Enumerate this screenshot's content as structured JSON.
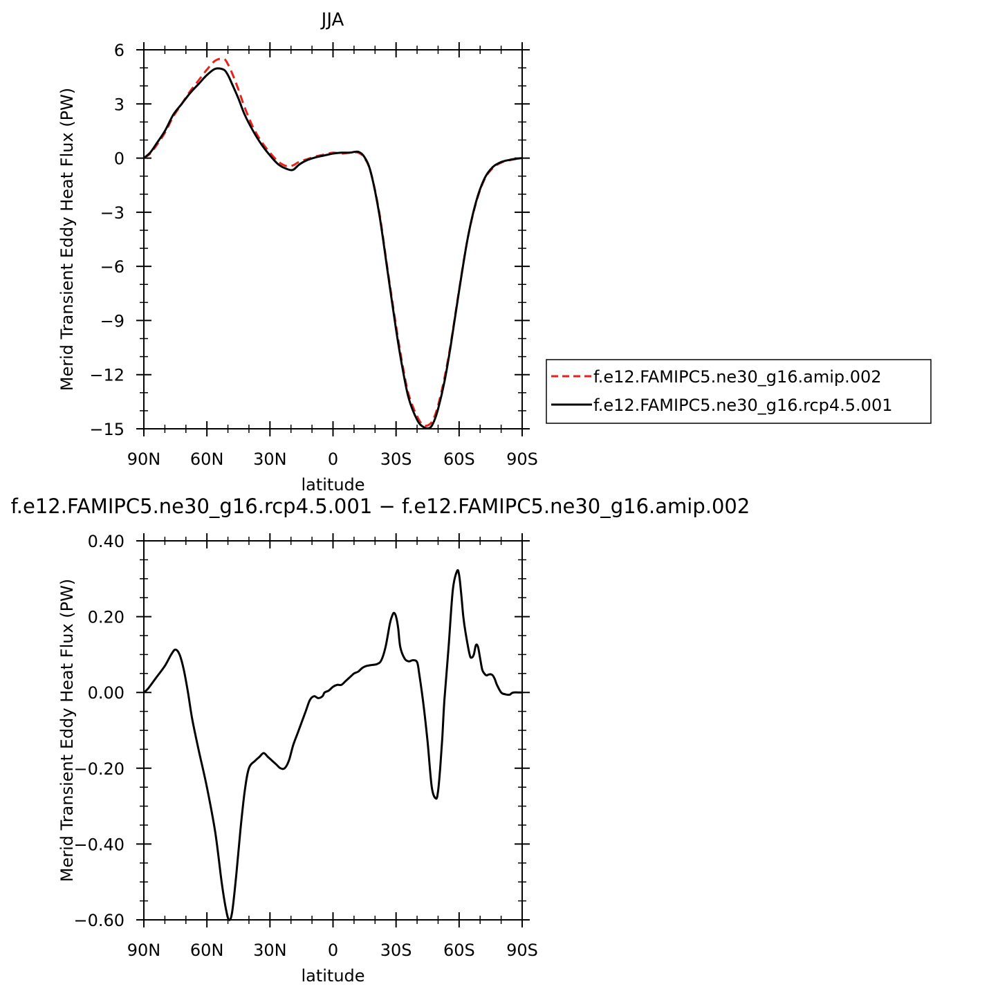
{
  "chart_data": [
    {
      "type": "line",
      "title": "JJA",
      "xlabel": "latitude",
      "ylabel": "Merid Transient Eddy Heat Flux (PW)",
      "xlim": [
        90,
        -90
      ],
      "ylim": [
        -15,
        6
      ],
      "xtick_values": [
        90,
        60,
        30,
        0,
        -30,
        -60,
        -90
      ],
      "xtick_labels": [
        "90N",
        "60N",
        "30N",
        "0",
        "30S",
        "60S",
        "90S"
      ],
      "ytick_values": [
        6,
        3,
        0,
        -3,
        -6,
        -9,
        -12,
        -15
      ],
      "ytick_labels": [
        "6",
        "3",
        "0",
        "−3",
        "−6",
        "−9",
        "−12",
        "−15"
      ],
      "legend_position": "right",
      "x": [
        90,
        87,
        84,
        80,
        76,
        72,
        68,
        64,
        60,
        56,
        52,
        50,
        48,
        45,
        42,
        38,
        34,
        30,
        26,
        22,
        19,
        16,
        12,
        8,
        4,
        0,
        -4,
        -8,
        -12,
        -15,
        -18,
        -22,
        -26,
        -30,
        -33,
        -36,
        -40,
        -43,
        -46,
        -48,
        -50,
        -53,
        -56,
        -60,
        -64,
        -68,
        -72,
        -76,
        -80,
        -84,
        -87,
        -90
      ],
      "series": [
        {
          "name": "f.e12.FAMIPC5.ne30_g16.amip.002",
          "color": "#e8211a",
          "dash": "dashed",
          "values": [
            0.0,
            0.25,
            0.7,
            1.4,
            2.3,
            3.0,
            3.7,
            4.3,
            4.9,
            5.4,
            5.5,
            5.2,
            4.7,
            3.8,
            2.8,
            1.7,
            0.9,
            0.3,
            -0.2,
            -0.45,
            -0.4,
            -0.2,
            -0.05,
            0.1,
            0.2,
            0.3,
            0.25,
            0.3,
            0.3,
            0.0,
            -0.8,
            -3.0,
            -6.2,
            -9.3,
            -11.4,
            -13.1,
            -14.3,
            -14.8,
            -14.75,
            -14.4,
            -13.7,
            -12.2,
            -10.3,
            -7.3,
            -4.5,
            -2.5,
            -1.2,
            -0.55,
            -0.25,
            -0.12,
            -0.05,
            0.0
          ]
        },
        {
          "name": "f.e12.FAMIPC5.ne30_g16.rcp4.5.001",
          "color": "#000000",
          "dash": "solid",
          "values": [
            0.0,
            0.3,
            0.8,
            1.5,
            2.4,
            3.0,
            3.6,
            4.1,
            4.6,
            4.95,
            4.9,
            4.6,
            4.1,
            3.3,
            2.4,
            1.5,
            0.75,
            0.15,
            -0.35,
            -0.6,
            -0.65,
            -0.35,
            -0.1,
            0.05,
            0.15,
            0.25,
            0.3,
            0.3,
            0.35,
            0.05,
            -0.8,
            -3.1,
            -6.3,
            -9.5,
            -11.6,
            -13.3,
            -14.5,
            -14.9,
            -14.95,
            -14.6,
            -13.9,
            -12.4,
            -10.4,
            -7.35,
            -4.5,
            -2.45,
            -1.15,
            -0.5,
            -0.22,
            -0.1,
            -0.04,
            0.0
          ]
        }
      ]
    },
    {
      "type": "line",
      "title": "f.e12.FAMIPC5.ne30_g16.rcp4.5.001 − f.e12.FAMIPC5.ne30_g16.amip.002",
      "xlabel": "latitude",
      "ylabel": "Merid Transient Eddy Heat Flux (PW)",
      "xlim": [
        90,
        -90
      ],
      "ylim": [
        -0.6,
        0.4
      ],
      "xtick_values": [
        90,
        60,
        30,
        0,
        -30,
        -60,
        -90
      ],
      "xtick_labels": [
        "90N",
        "60N",
        "30N",
        "0",
        "30S",
        "60S",
        "90S"
      ],
      "ytick_values": [
        0.4,
        0.2,
        0.0,
        -0.2,
        -0.4,
        -0.6
      ],
      "ytick_labels": [
        "0.40",
        "0.20",
        "0.00",
        "−0.20",
        "−0.40",
        "−0.60"
      ],
      "x": [
        90,
        88,
        84,
        80,
        77,
        75,
        73,
        71,
        69,
        67,
        64,
        60,
        56,
        53,
        51,
        49.5,
        48,
        46,
        44,
        42,
        40,
        37,
        35,
        33,
        31,
        30,
        29,
        27,
        25,
        23,
        21,
        19,
        17,
        15,
        13,
        11,
        9,
        7,
        5,
        4,
        2,
        0,
        -2,
        -4,
        -6,
        -8,
        -10,
        -12,
        -14,
        -16,
        -18,
        -21,
        -23,
        -25,
        -27,
        -28,
        -29,
        -30,
        -31,
        -32,
        -34,
        -36,
        -38,
        -40,
        -41,
        -43,
        -45,
        -47,
        -49,
        -50,
        -51,
        -52,
        -53,
        -55,
        -57,
        -59,
        -60,
        -61,
        -62,
        -63,
        -65,
        -66,
        -67,
        -68,
        -69,
        -70,
        -71,
        -72,
        -73,
        -74,
        -75,
        -76,
        -77,
        -78,
        -80,
        -82,
        -84,
        -85,
        -86,
        -88,
        -90
      ],
      "series": [
        {
          "name": "",
          "color": "#000000",
          "dash": "solid",
          "values": [
            0.0,
            0.01,
            0.04,
            0.07,
            0.1,
            0.113,
            0.1,
            0.06,
            0.0,
            -0.07,
            -0.15,
            -0.25,
            -0.37,
            -0.5,
            -0.57,
            -0.6,
            -0.58,
            -0.48,
            -0.36,
            -0.26,
            -0.2,
            -0.18,
            -0.17,
            -0.16,
            -0.17,
            -0.175,
            -0.18,
            -0.19,
            -0.2,
            -0.2,
            -0.18,
            -0.14,
            -0.11,
            -0.08,
            -0.05,
            -0.02,
            -0.01,
            -0.015,
            -0.01,
            0.0,
            0.005,
            0.015,
            0.02,
            0.02,
            0.03,
            0.04,
            0.05,
            0.055,
            0.065,
            0.07,
            0.072,
            0.075,
            0.085,
            0.12,
            0.18,
            0.2,
            0.21,
            0.2,
            0.17,
            0.12,
            0.09,
            0.082,
            0.085,
            0.08,
            0.05,
            -0.03,
            -0.13,
            -0.25,
            -0.28,
            -0.26,
            -0.2,
            -0.12,
            -0.02,
            0.12,
            0.27,
            0.32,
            0.31,
            0.26,
            0.2,
            0.16,
            0.1,
            0.092,
            0.1,
            0.125,
            0.12,
            0.09,
            0.06,
            0.05,
            0.045,
            0.047,
            0.048,
            0.045,
            0.035,
            0.02,
            0.0,
            -0.005,
            -0.006,
            -0.002,
            0.0,
            0.0,
            0.0
          ]
        }
      ]
    }
  ]
}
